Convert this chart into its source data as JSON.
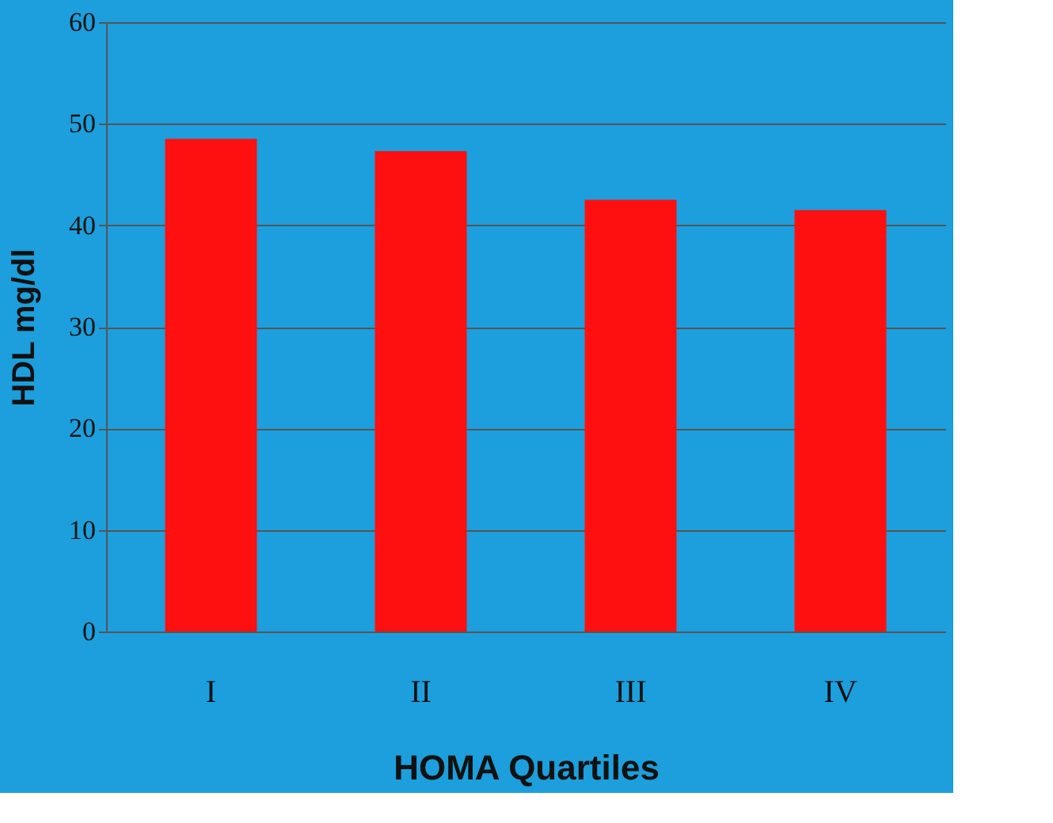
{
  "chart_data": {
    "type": "bar",
    "xlabel": "HOMA Quartiles",
    "ylabel": "HDL mg/dl",
    "categories": [
      "I",
      "II",
      "III",
      "IV"
    ],
    "values": [
      48.5,
      47.3,
      42.5,
      41.5
    ],
    "color": "#ff1010",
    "ylim": [
      0,
      60
    ],
    "yticks": [
      0,
      10,
      20,
      30,
      40,
      50,
      60
    ],
    "grid": "y"
  }
}
